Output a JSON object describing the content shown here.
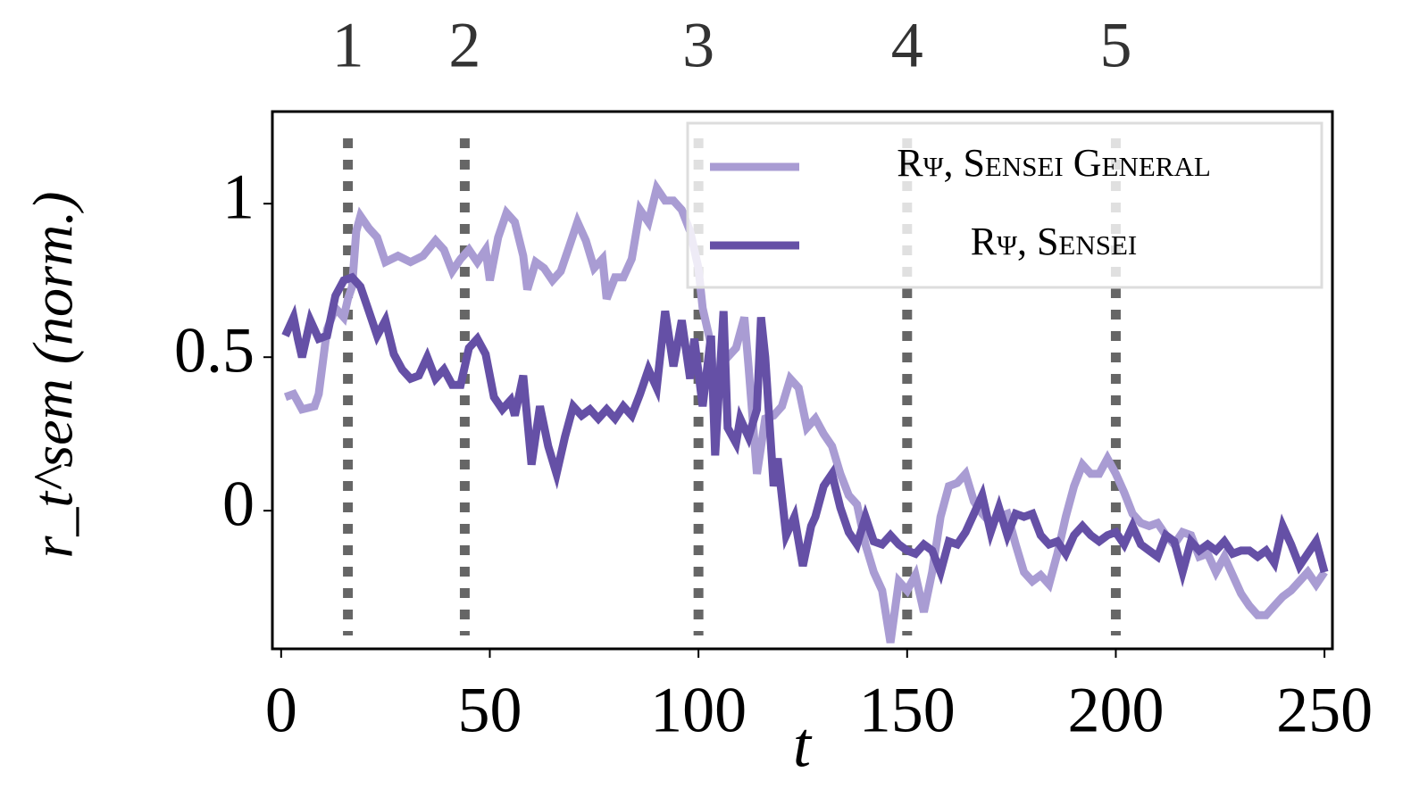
{
  "chart_data": {
    "type": "line",
    "xlabel": "t",
    "ylabel": "r_t^sem (norm.)",
    "xlim": [
      -2.1,
      251.9
    ],
    "ylim": [
      -0.45,
      1.3
    ],
    "xticks": [
      0,
      50,
      100,
      150,
      200,
      250
    ],
    "yticks": [
      0,
      0.5,
      1
    ],
    "legend": "upper right",
    "vlines": [
      {
        "x": 16,
        "label": "1"
      },
      {
        "x": 44,
        "label": "2"
      },
      {
        "x": 100,
        "label": "3"
      },
      {
        "x": 150,
        "label": "4"
      },
      {
        "x": 200,
        "label": "5"
      }
    ],
    "series": [
      {
        "name": "Rψ, Sensei General",
        "color": "#a99cd3",
        "x": [
          1,
          3,
          5,
          8,
          9,
          11,
          13,
          15,
          16,
          17,
          18,
          19,
          21,
          23,
          25,
          28,
          31,
          34,
          37,
          39,
          41,
          43,
          45,
          47,
          49,
          50,
          52,
          54,
          56,
          58,
          59,
          61,
          63,
          65,
          67,
          69,
          71,
          73,
          75,
          77,
          78,
          80,
          82,
          84,
          86,
          88,
          90,
          92,
          94,
          96,
          98,
          100,
          101,
          103,
          104,
          106,
          107,
          109,
          111,
          112,
          114,
          116,
          118,
          120,
          122,
          124,
          126,
          128,
          130,
          132,
          134,
          136,
          138,
          140,
          142,
          144,
          146,
          148,
          150,
          152,
          154,
          156,
          158,
          160,
          162,
          164,
          166,
          168,
          170,
          172,
          174,
          176,
          178,
          180,
          182,
          184,
          186,
          188,
          190,
          192,
          194,
          196,
          198,
          200,
          202,
          204,
          206,
          208,
          210,
          212,
          214,
          216,
          218,
          220,
          222,
          224,
          226,
          228,
          230,
          232,
          234,
          236,
          238,
          240,
          242,
          244,
          246,
          248,
          250
        ],
        "values": [
          0.37,
          0.38,
          0.33,
          0.34,
          0.38,
          0.59,
          0.66,
          0.63,
          0.69,
          0.73,
          0.91,
          0.96,
          0.92,
          0.89,
          0.81,
          0.83,
          0.81,
          0.83,
          0.88,
          0.85,
          0.78,
          0.82,
          0.85,
          0.81,
          0.85,
          0.75,
          0.89,
          0.97,
          0.94,
          0.83,
          0.72,
          0.81,
          0.79,
          0.75,
          0.78,
          0.86,
          0.94,
          0.88,
          0.79,
          0.82,
          0.69,
          0.76,
          0.76,
          0.82,
          0.98,
          0.94,
          1.05,
          1.01,
          1.01,
          0.98,
          0.91,
          0.79,
          0.66,
          0.54,
          0.33,
          0.53,
          0.5,
          0.53,
          0.63,
          0.47,
          0.12,
          0.3,
          0.31,
          0.34,
          0.43,
          0.4,
          0.27,
          0.3,
          0.25,
          0.21,
          0.12,
          0.05,
          0.02,
          -0.11,
          -0.2,
          -0.26,
          -0.43,
          -0.23,
          -0.26,
          -0.21,
          -0.33,
          -0.2,
          -0.02,
          0.08,
          0.09,
          0.12,
          0.03,
          -0.01,
          -0.04,
          -0.02,
          -0.01,
          -0.11,
          -0.2,
          -0.23,
          -0.21,
          -0.24,
          -0.14,
          -0.02,
          0.08,
          0.15,
          0.12,
          0.12,
          0.17,
          0.12,
          0.06,
          -0.01,
          -0.04,
          -0.05,
          -0.04,
          -0.08,
          -0.11,
          -0.07,
          -0.08,
          -0.15,
          -0.14,
          -0.2,
          -0.15,
          -0.21,
          -0.27,
          -0.31,
          -0.34,
          -0.34,
          -0.31,
          -0.28,
          -0.26,
          -0.23,
          -0.2,
          -0.24,
          -0.2
        ]
      },
      {
        "name": "Rψ, Sensei",
        "color": "#6550a6",
        "x": [
          1,
          3,
          4,
          5,
          7,
          9,
          11,
          13,
          15,
          17,
          19,
          21,
          23,
          25,
          27,
          29,
          31,
          33,
          35,
          37,
          39,
          41,
          43,
          45,
          47,
          49,
          51,
          53,
          55,
          56,
          58,
          60,
          62,
          64,
          66,
          68,
          70,
          72,
          74,
          76,
          78,
          80,
          82,
          84,
          86,
          88,
          90,
          92,
          94,
          96,
          98,
          99,
          101,
          103,
          104,
          106,
          107,
          109,
          110,
          112,
          114,
          115,
          116,
          118,
          119,
          121,
          123,
          125,
          127,
          128,
          130,
          132,
          134,
          136,
          138,
          140,
          142,
          144,
          146,
          148,
          150,
          152,
          154,
          156,
          158,
          160,
          162,
          164,
          166,
          168,
          170,
          172,
          174,
          176,
          178,
          180,
          182,
          184,
          186,
          188,
          190,
          192,
          194,
          196,
          198,
          200,
          202,
          204,
          206,
          208,
          210,
          212,
          214,
          216,
          218,
          220,
          222,
          224,
          226,
          228,
          230,
          232,
          234,
          236,
          238,
          240,
          242,
          244,
          246,
          248,
          250
        ],
        "values": [
          0.57,
          0.63,
          0.56,
          0.5,
          0.62,
          0.56,
          0.57,
          0.7,
          0.75,
          0.76,
          0.73,
          0.65,
          0.57,
          0.62,
          0.51,
          0.46,
          0.43,
          0.44,
          0.5,
          0.43,
          0.46,
          0.41,
          0.41,
          0.53,
          0.56,
          0.51,
          0.37,
          0.33,
          0.36,
          0.31,
          0.44,
          0.15,
          0.34,
          0.21,
          0.12,
          0.24,
          0.34,
          0.31,
          0.33,
          0.3,
          0.33,
          0.3,
          0.34,
          0.31,
          0.38,
          0.46,
          0.4,
          0.65,
          0.47,
          0.62,
          0.43,
          0.56,
          0.34,
          0.57,
          0.18,
          0.65,
          0.27,
          0.22,
          0.3,
          0.24,
          0.33,
          0.63,
          0.5,
          0.08,
          0.17,
          -0.08,
          -0.02,
          -0.18,
          -0.05,
          -0.02,
          0.08,
          0.12,
          0.01,
          -0.07,
          -0.11,
          -0.02,
          -0.1,
          -0.11,
          -0.08,
          -0.11,
          -0.13,
          -0.14,
          -0.11,
          -0.13,
          -0.2,
          -0.1,
          -0.11,
          -0.07,
          -0.01,
          0.05,
          -0.07,
          0.01,
          -0.08,
          -0.01,
          -0.02,
          -0.01,
          -0.08,
          -0.11,
          -0.1,
          -0.14,
          -0.08,
          -0.05,
          -0.08,
          -0.1,
          -0.08,
          -0.07,
          -0.11,
          -0.05,
          -0.11,
          -0.13,
          -0.15,
          -0.08,
          -0.1,
          -0.2,
          -0.1,
          -0.13,
          -0.11,
          -0.13,
          -0.1,
          -0.14,
          -0.13,
          -0.13,
          -0.15,
          -0.13,
          -0.17,
          -0.05,
          -0.11,
          -0.18,
          -0.14,
          -0.1,
          -0.2
        ]
      }
    ]
  }
}
